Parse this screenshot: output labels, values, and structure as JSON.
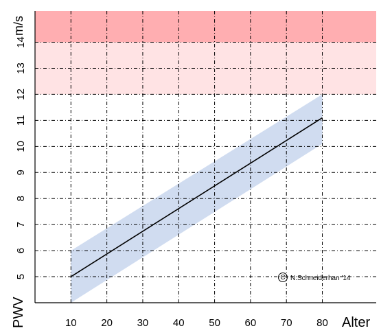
{
  "chart_data": {
    "type": "line",
    "xlabel": "Alter",
    "ylabel": "PWV",
    "yunit": "m/s",
    "xlim": [
      0,
      95
    ],
    "ylim": [
      4,
      15.2
    ],
    "x_ticks": [
      10,
      20,
      30,
      40,
      50,
      60,
      70,
      80
    ],
    "y_ticks": [
      5,
      6,
      7,
      8,
      9,
      10,
      11,
      12,
      13,
      14
    ],
    "grid": true,
    "zones": [
      {
        "y_from": 14,
        "y_to": 15.2,
        "color": "#ffaeb1"
      },
      {
        "y_from": 12,
        "y_to": 14,
        "color": "#ffe3e4"
      }
    ],
    "band": {
      "color": "#d0dcf0",
      "x": [
        10,
        80
      ],
      "lower": [
        4,
        10.1
      ],
      "upper": [
        6,
        12
      ]
    },
    "series": [
      {
        "x": [
          10,
          80
        ],
        "y": [
          5,
          11.1
        ],
        "color": "#000000"
      }
    ],
    "annotation": {
      "symbol": "C",
      "text": "N.Schneiderhan '14",
      "x": 69,
      "y": 5
    }
  }
}
